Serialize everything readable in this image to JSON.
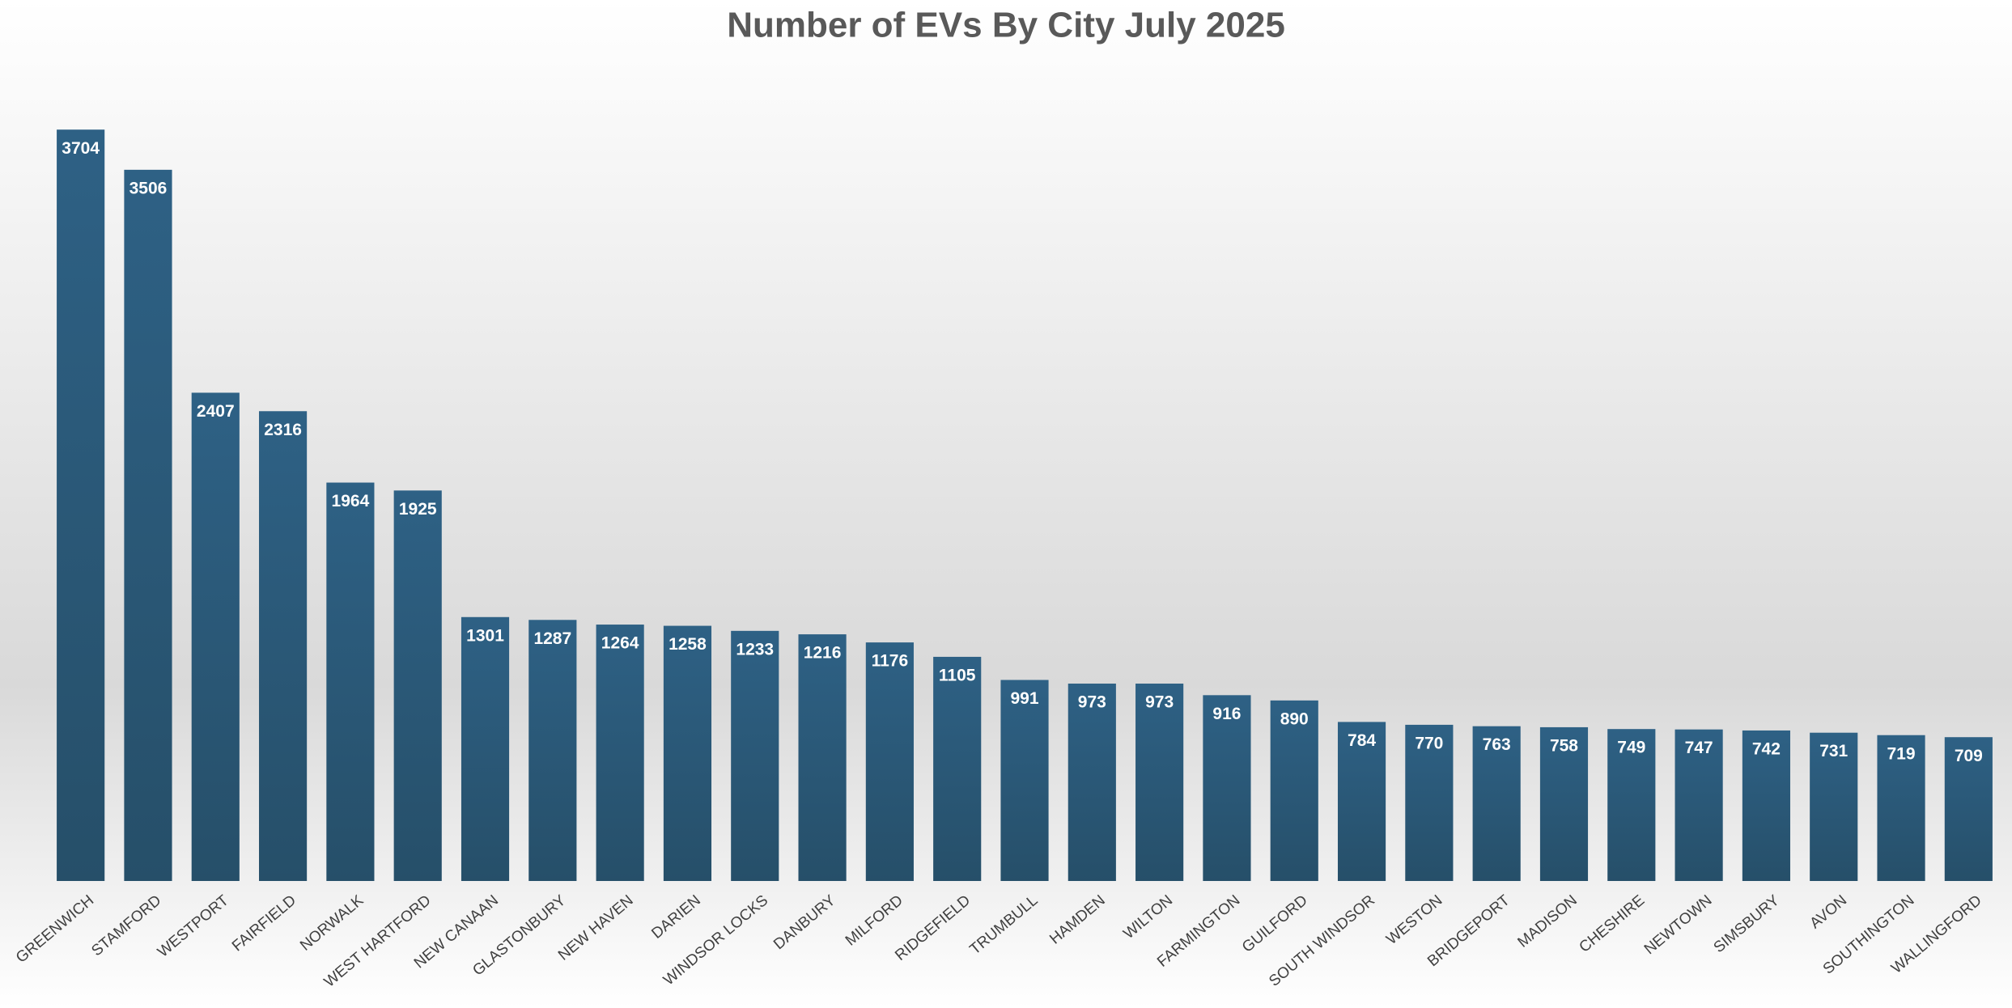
{
  "chart_data": {
    "type": "bar",
    "title": "Number of EVs By City July 2025",
    "categories": [
      "GREENWICH",
      "STAMFORD",
      "WESTPORT",
      "FAIRFIELD",
      "NORWALK",
      "WEST HARTFORD",
      "NEW CANAAN",
      "GLASTONBURY",
      "NEW HAVEN",
      "DARIEN",
      "WINDSOR LOCKS",
      "DANBURY",
      "MILFORD",
      "RIDGEFIELD",
      "TRUMBULL",
      "HAMDEN",
      "WILTON",
      "FARMINGTON",
      "GUILFORD",
      "SOUTH WINDSOR",
      "WESTON",
      "BRIDGEPORT",
      "MADISON",
      "CHESHIRE",
      "NEWTOWN",
      "SIMSBURY",
      "AVON",
      "SOUTHINGTON",
      "WALLINGFORD"
    ],
    "values": [
      3704,
      3506,
      2407,
      2316,
      1964,
      1925,
      1301,
      1287,
      1264,
      1258,
      1233,
      1216,
      1176,
      1105,
      991,
      973,
      973,
      916,
      890,
      784,
      770,
      763,
      758,
      749,
      747,
      742,
      731,
      719,
      709
    ],
    "color": "#2e5f80",
    "ylim": [
      0,
      4000
    ]
  }
}
